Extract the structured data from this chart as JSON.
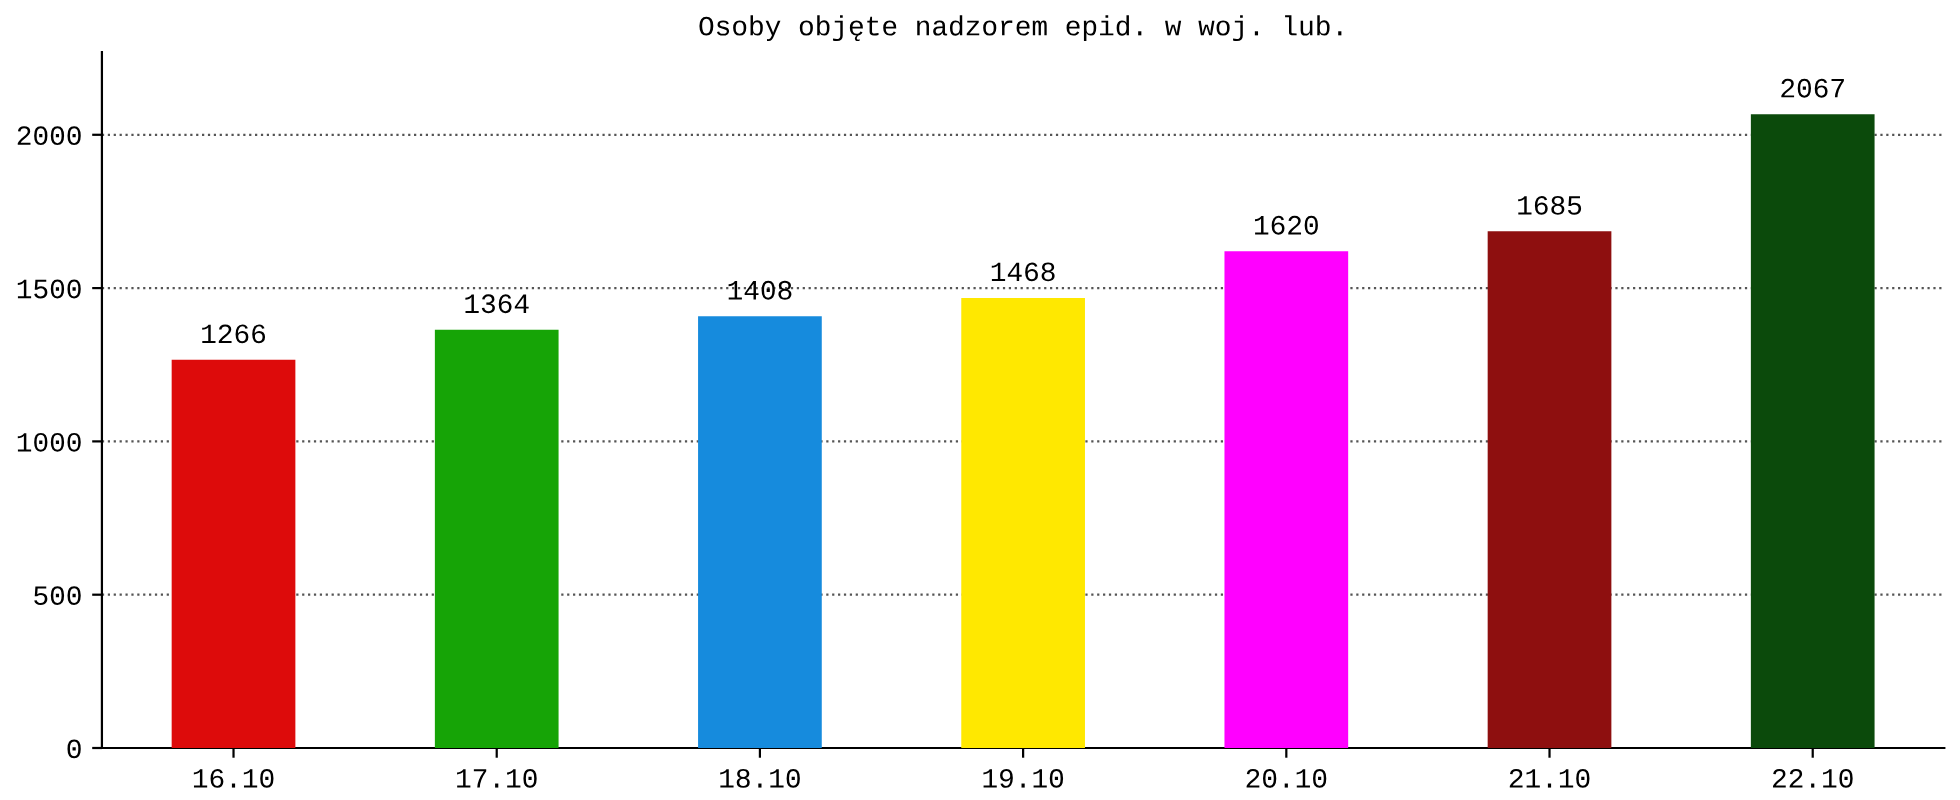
{
  "chart_data": {
    "type": "bar",
    "title": "Osoby objęte nadzorem epid. w woj. lub.",
    "categories": [
      "16.10",
      "17.10",
      "18.10",
      "19.10",
      "20.10",
      "21.10",
      "22.10"
    ],
    "values": [
      1266,
      1364,
      1408,
      1468,
      1620,
      1685,
      2067
    ],
    "colors": [
      "#dd0b0b",
      "#16a406",
      "#168bdd",
      "#ffe800",
      "#ff00ff",
      "#8e0f0f",
      "#0b4a0b"
    ],
    "ylim": [
      0,
      2270
    ],
    "yticks": [
      0,
      500,
      1000,
      1500,
      2000
    ],
    "grid": "y",
    "data_labels": true
  }
}
